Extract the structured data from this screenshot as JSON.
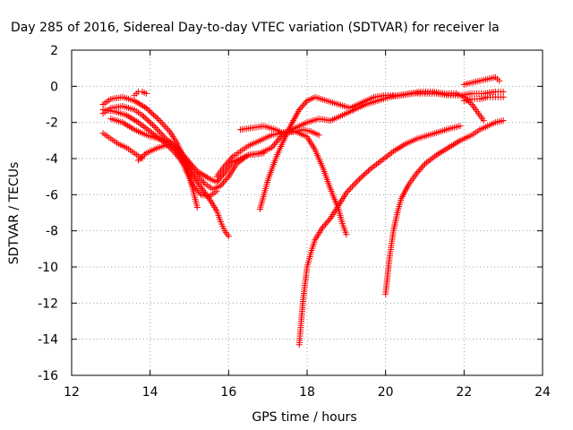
{
  "chart_data": {
    "type": "scatter",
    "title": "Day 285 of 2016, Sidereal Day-to-day VTEC variation (SDTVAR) for receiver la",
    "xlabel": "GPS time / hours",
    "ylabel": "SDTVAR / TECUs",
    "xlim": [
      12,
      24
    ],
    "ylim": [
      -16,
      2
    ],
    "xticks": [
      12,
      14,
      16,
      18,
      20,
      22,
      24
    ],
    "yticks": [
      2,
      0,
      -2,
      -4,
      -6,
      -8,
      -10,
      -12,
      -14,
      -16
    ],
    "grid": true,
    "marker": "+",
    "color": "#ff0000",
    "series": [
      {
        "x": [
          12.8,
          13.0,
          13.3,
          13.6,
          13.8,
          14.1,
          14.4,
          14.7,
          15.0,
          15.2,
          15.5,
          15.7,
          15.9,
          16.1,
          16.5,
          16.9
        ],
        "y": [
          -1.5,
          -1.2,
          -1.1,
          -1.3,
          -1.6,
          -2.2,
          -2.9,
          -3.4,
          -4.2,
          -4.7,
          -5.1,
          -5.3,
          -4.8,
          -4.2,
          -3.8,
          -3.7
        ]
      },
      {
        "x": [
          12.8,
          13.0,
          13.3,
          13.6,
          13.9,
          14.2,
          14.5,
          14.7,
          14.9,
          15.0,
          15.1,
          15.2
        ],
        "y": [
          -1.0,
          -0.7,
          -0.6,
          -0.8,
          -1.2,
          -1.8,
          -2.5,
          -3.2,
          -4.2,
          -5.0,
          -5.8,
          -6.7
        ]
      },
      {
        "x": [
          12.8,
          13.1,
          13.4,
          13.7,
          14.0,
          14.3,
          14.6,
          14.9,
          15.2,
          15.5,
          15.7,
          15.8,
          15.9,
          16.0
        ],
        "y": [
          -1.3,
          -1.4,
          -1.6,
          -2.0,
          -2.5,
          -3.0,
          -3.6,
          -4.4,
          -5.3,
          -6.2,
          -6.9,
          -7.5,
          -8.0,
          -8.3
        ]
      },
      {
        "x": [
          12.8,
          13.0,
          13.2,
          13.4,
          13.6,
          13.8
        ],
        "y": [
          -2.6,
          -2.9,
          -3.2,
          -3.4,
          -3.7,
          -4.0
        ]
      },
      {
        "x": [
          13.0,
          13.3,
          13.6,
          13.9,
          14.2,
          14.5,
          14.8,
          15.1,
          15.4,
          15.6,
          15.8,
          16.0,
          16.2,
          16.5,
          16.8,
          17.1,
          17.4,
          17.7,
          18.0,
          18.2,
          18.4,
          18.6,
          18.8,
          18.9,
          19.0
        ],
        "y": [
          -1.8,
          -2.0,
          -2.4,
          -2.7,
          -2.9,
          -3.1,
          -3.8,
          -4.7,
          -5.4,
          -5.7,
          -5.5,
          -5.0,
          -4.3,
          -3.8,
          -3.7,
          -3.4,
          -2.6,
          -2.5,
          -2.8,
          -3.5,
          -4.5,
          -5.7,
          -6.8,
          -7.6,
          -8.2
        ]
      },
      {
        "x": [
          13.7,
          13.9,
          14.2,
          14.5,
          14.7,
          14.9,
          15.1,
          15.3,
          15.5,
          15.7
        ],
        "y": [
          -4.1,
          -3.7,
          -3.4,
          -3.2,
          -3.6,
          -4.6,
          -5.5,
          -6.0,
          -6.1,
          -5.8
        ]
      },
      {
        "x": [
          13.6,
          13.7,
          13.8,
          13.9
        ],
        "y": [
          -0.5,
          -0.3,
          -0.3,
          -0.4
        ]
      },
      {
        "x": [
          15.7,
          15.9,
          16.1,
          16.3,
          16.5,
          16.7,
          16.9,
          17.1,
          17.3,
          17.5,
          17.7,
          17.9,
          18.1,
          18.3
        ],
        "y": [
          -5.0,
          -4.4,
          -3.9,
          -3.6,
          -3.3,
          -3.1,
          -2.9,
          -2.7,
          -2.6,
          -2.5,
          -2.5,
          -2.4,
          -2.5,
          -2.7
        ]
      },
      {
        "x": [
          16.3,
          16.6,
          16.9,
          17.2,
          17.4,
          17.6,
          17.8,
          18.0,
          18.3,
          18.6,
          18.9,
          19.2,
          19.5,
          19.8,
          20.1,
          20.4,
          20.7,
          21.0,
          21.3,
          21.6,
          21.9,
          22.2,
          22.5,
          22.8,
          23.0
        ],
        "y": [
          -2.4,
          -2.3,
          -2.2,
          -2.4,
          -2.6,
          -2.4,
          -2.2,
          -2.0,
          -1.8,
          -1.9,
          -1.6,
          -1.3,
          -1.0,
          -0.8,
          -0.6,
          -0.5,
          -0.4,
          -0.4,
          -0.4,
          -0.5,
          -0.5,
          -0.4,
          -0.4,
          -0.3,
          -0.3
        ]
      },
      {
        "x": [
          16.8,
          16.9,
          17.0,
          17.2,
          17.4,
          17.6,
          17.8,
          18.0,
          18.2,
          18.5,
          18.8,
          19.1,
          19.4,
          19.7,
          20.0,
          20.3,
          20.6,
          20.9,
          21.2,
          21.5,
          21.8,
          22.0,
          22.2,
          22.4,
          22.5
        ],
        "y": [
          -6.8,
          -6.0,
          -5.2,
          -4.0,
          -3.0,
          -2.1,
          -1.3,
          -0.8,
          -0.6,
          -0.8,
          -1.0,
          -1.2,
          -0.9,
          -0.6,
          -0.5,
          -0.5,
          -0.4,
          -0.3,
          -0.3,
          -0.4,
          -0.4,
          -0.6,
          -1.0,
          -1.6,
          -1.9
        ]
      },
      {
        "x": [
          17.8,
          17.85,
          17.9,
          18.0,
          18.1,
          18.2,
          18.4,
          18.6,
          18.8,
          19.0,
          19.3,
          19.6,
          19.9,
          20.2,
          20.5,
          20.8,
          21.1,
          21.4,
          21.7,
          21.9
        ],
        "y": [
          -14.3,
          -13.0,
          -11.8,
          -10.0,
          -9.2,
          -8.5,
          -7.8,
          -7.3,
          -6.6,
          -5.9,
          -5.2,
          -4.6,
          -4.1,
          -3.6,
          -3.2,
          -2.9,
          -2.7,
          -2.5,
          -2.3,
          -2.2
        ]
      },
      {
        "x": [
          20.0,
          20.05,
          20.1,
          20.2,
          20.3,
          20.4,
          20.6,
          20.8,
          21.0,
          21.3,
          21.6,
          21.9,
          22.2,
          22.4,
          22.6,
          22.8,
          23.0
        ],
        "y": [
          -11.5,
          -10.5,
          -9.5,
          -8.0,
          -7.0,
          -6.2,
          -5.4,
          -4.8,
          -4.3,
          -3.8,
          -3.4,
          -3.0,
          -2.7,
          -2.4,
          -2.2,
          -2.0,
          -1.9
        ]
      },
      {
        "x": [
          22.0,
          22.2,
          22.4,
          22.6,
          22.8,
          22.9
        ],
        "y": [
          0.1,
          0.2,
          0.3,
          0.4,
          0.5,
          0.3
        ]
      },
      {
        "x": [
          22.0,
          22.2,
          22.4,
          22.6,
          22.8,
          23.0
        ],
        "y": [
          -0.8,
          -0.7,
          -0.7,
          -0.6,
          -0.6,
          -0.6
        ]
      }
    ]
  }
}
